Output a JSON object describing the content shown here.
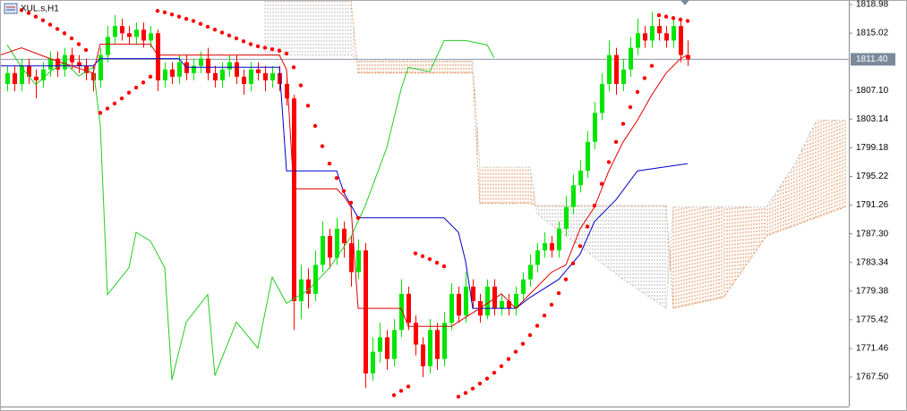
{
  "chart_data": {
    "type": "candlestick",
    "title": "XUL.s,H1",
    "xlim": [
      -1,
      117.5
    ],
    "ylim": [
      1763.43,
      1819.6
    ],
    "yticks": [
      1818.98,
      1815.02,
      {
        "value": 1807.1,
        "label": "1807.10"
      },
      1803.14,
      1799.18,
      1795.22,
      1791.26,
      {
        "value": 1787.3,
        "label": "1787.30"
      },
      1783.34,
      1779.38,
      1775.42,
      1771.46,
      {
        "value": 1767.5,
        "label": "1767.50"
      }
    ],
    "current_price": {
      "value": 1811.4,
      "label": "1811.40"
    },
    "up_color": "#00e600",
    "down_color": "#ff0000",
    "open": [
      1808.0,
      1809.5,
      1808.0,
      1810.5,
      1809.0,
      1808.5,
      1810.0,
      1811.5,
      1810.0,
      1812.0,
      1811.0,
      1810.5,
      1809.5,
      1808.5,
      1812.0,
      1814.5,
      1816.0,
      1815.0,
      1814.5,
      1815.5,
      1814.0,
      1815.0,
      1808.5,
      1810.0,
      1809.0,
      1811.0,
      1809.5,
      1810.5,
      1811.5,
      1809.5,
      1808.5,
      1810.0,
      1811.0,
      1809.0,
      1808.0,
      1810.0,
      1809.5,
      1808.5,
      1809.5,
      1808.0,
      1806.0,
      1778.0,
      1781.0,
      1779.0,
      1783.0,
      1787.0,
      1784.0,
      1788.0,
      1786.0,
      1782.0,
      1785.0,
      1768.0,
      1771.0,
      1773.0,
      1770.0,
      1774.0,
      1779.0,
      1775.0,
      1772.0,
      1769.0,
      1774.0,
      1770.0,
      1775.0,
      1779.0,
      1776.0,
      1780.0,
      1778.0,
      1776.0,
      1780.0,
      1777.0,
      1778.0,
      1777.0,
      1779.0,
      1781.0,
      1783.0,
      1785.0,
      1786.0,
      1785.0,
      1788.0,
      1791.0,
      1794.0,
      1796.0,
      1800.0,
      1804.0,
      1808.0,
      1812.0,
      1808.0,
      1810.0,
      1813.0,
      1815.0,
      1814.0,
      1816.0,
      1815.0,
      1814.0,
      1816.0,
      1812.0
    ],
    "high": [
      1810.5,
      1810.5,
      1811.5,
      1811.5,
      1810.0,
      1811.0,
      1812.5,
      1812.5,
      1813.0,
      1813.0,
      1812.0,
      1811.5,
      1810.5,
      1813.0,
      1816.0,
      1817.5,
      1817.0,
      1816.0,
      1816.5,
      1816.5,
      1816.0,
      1815.5,
      1811.0,
      1811.0,
      1812.0,
      1812.0,
      1811.5,
      1812.5,
      1813.0,
      1810.5,
      1811.0,
      1812.0,
      1812.0,
      1810.0,
      1811.0,
      1811.0,
      1810.5,
      1810.5,
      1810.5,
      1809.0,
      1806.5,
      1783.0,
      1782.5,
      1785.0,
      1789.0,
      1788.0,
      1789.5,
      1789.0,
      1787.0,
      1786.5,
      1786.0,
      1773.0,
      1775.0,
      1774.0,
      1775.5,
      1781.0,
      1780.0,
      1776.0,
      1773.0,
      1775.5,
      1775.0,
      1776.5,
      1780.5,
      1780.0,
      1782.0,
      1781.0,
      1779.0,
      1781.0,
      1781.0,
      1779.0,
      1779.0,
      1780.0,
      1782.0,
      1784.5,
      1786.0,
      1787.5,
      1787.0,
      1789.0,
      1792.5,
      1795.5,
      1797.5,
      1801.5,
      1805.5,
      1809.5,
      1814.0,
      1813.0,
      1811.5,
      1814.5,
      1817.0,
      1816.0,
      1818.0,
      1817.0,
      1816.0,
      1817.0,
      1817.0,
      1814.0
    ],
    "low": [
      1807.0,
      1807.0,
      1807.0,
      1808.0,
      1806.0,
      1807.5,
      1809.0,
      1809.0,
      1809.0,
      1810.0,
      1809.5,
      1808.5,
      1807.0,
      1807.5,
      1811.0,
      1813.5,
      1814.0,
      1813.5,
      1813.5,
      1813.0,
      1813.0,
      1807.0,
      1807.5,
      1808.0,
      1808.0,
      1808.5,
      1808.5,
      1809.5,
      1808.5,
      1807.5,
      1807.5,
      1809.0,
      1808.0,
      1806.5,
      1807.0,
      1808.5,
      1807.0,
      1807.5,
      1807.0,
      1805.0,
      1774.0,
      1775.5,
      1777.0,
      1778.0,
      1782.0,
      1782.5,
      1783.0,
      1784.0,
      1780.0,
      1781.0,
      1766.0,
      1767.0,
      1769.5,
      1768.5,
      1769.0,
      1773.0,
      1774.0,
      1770.5,
      1767.5,
      1768.0,
      1768.5,
      1769.0,
      1774.0,
      1775.0,
      1775.0,
      1777.0,
      1775.0,
      1775.5,
      1776.0,
      1776.0,
      1776.0,
      1776.0,
      1778.0,
      1780.0,
      1782.0,
      1784.0,
      1784.0,
      1784.0,
      1787.0,
      1790.0,
      1793.0,
      1795.0,
      1799.0,
      1803.0,
      1807.0,
      1806.5,
      1807.0,
      1809.0,
      1812.0,
      1813.0,
      1813.0,
      1814.0,
      1813.0,
      1813.0,
      1811.0,
      1810.5
    ],
    "close": [
      1809.5,
      1808.0,
      1810.5,
      1809.0,
      1808.5,
      1810.0,
      1811.5,
      1810.0,
      1812.0,
      1811.0,
      1810.5,
      1809.5,
      1808.5,
      1812.0,
      1814.5,
      1816.0,
      1815.0,
      1814.5,
      1815.5,
      1814.0,
      1815.0,
      1808.5,
      1810.0,
      1809.0,
      1811.0,
      1809.5,
      1810.5,
      1811.5,
      1809.5,
      1808.5,
      1810.0,
      1811.0,
      1809.0,
      1808.0,
      1810.0,
      1809.5,
      1808.5,
      1809.5,
      1808.0,
      1806.0,
      1778.0,
      1781.0,
      1779.0,
      1783.0,
      1787.0,
      1784.0,
      1788.0,
      1786.0,
      1782.0,
      1785.0,
      1768.0,
      1771.0,
      1773.0,
      1770.0,
      1774.0,
      1779.0,
      1775.0,
      1772.0,
      1769.0,
      1774.0,
      1770.0,
      1775.0,
      1779.0,
      1776.0,
      1780.0,
      1778.0,
      1776.0,
      1780.0,
      1777.0,
      1778.0,
      1777.0,
      1779.0,
      1781.0,
      1783.0,
      1785.0,
      1786.0,
      1785.0,
      1788.0,
      1791.0,
      1794.0,
      1796.0,
      1800.0,
      1804.0,
      1808.0,
      1812.0,
      1808.0,
      1810.0,
      1813.0,
      1815.0,
      1814.0,
      1816.0,
      1815.0,
      1814.0,
      1816.0,
      1812.0,
      1811.4
    ],
    "tenkan": {
      "color": "#e00000",
      "x": [
        -1,
        2,
        6,
        9,
        12,
        13,
        20,
        21,
        38,
        39,
        40,
        46,
        47,
        48,
        49,
        55,
        56,
        62,
        66,
        69,
        71,
        73,
        76,
        78,
        80,
        82,
        84,
        86,
        88,
        90,
        92,
        94,
        95
      ],
      "values": [
        1812.0,
        1813.0,
        1811.5,
        1810.5,
        1809.5,
        1813.5,
        1813.5,
        1812.0,
        1812.0,
        1810.0,
        1793.5,
        1793.5,
        1792.5,
        1791.0,
        1777.0,
        1777.0,
        1774.5,
        1774.5,
        1777.0,
        1779.0,
        1777.0,
        1779.0,
        1782.0,
        1783.0,
        1788.0,
        1791.0,
        1796.0,
        1800.0,
        1803.0,
        1806.5,
        1809.5,
        1811.5,
        1812.0
      ]
    },
    "kijun": {
      "color": "#0000c8",
      "x": [
        -1,
        12,
        13,
        24,
        25,
        38,
        39,
        46,
        47,
        49,
        61,
        63,
        64,
        65,
        71,
        73,
        77,
        80,
        82,
        85,
        88,
        95
      ],
      "values": [
        1810.5,
        1810.5,
        1811.5,
        1811.5,
        1810.3,
        1810.3,
        1796.0,
        1796.0,
        1793.0,
        1789.5,
        1789.5,
        1787.5,
        1783.5,
        1777.0,
        1777.0,
        1778.5,
        1781.0,
        1784.5,
        1789.0,
        1792.0,
        1796.0,
        1797.0
      ]
    },
    "chikou": {
      "color": "#22cc22",
      "x": [
        0,
        2,
        4,
        6,
        8,
        10,
        12,
        13,
        14,
        17,
        18,
        20,
        22,
        23,
        25,
        28,
        29,
        32,
        35,
        37,
        39,
        42,
        45,
        48,
        50,
        53,
        55,
        56,
        59,
        61,
        64,
        67,
        68
      ],
      "values": [
        1813.4,
        1810.3,
        1807.9,
        1809.7,
        1811.0,
        1809.1,
        1810.3,
        1802.3,
        1778.9,
        1782.6,
        1787.5,
        1786.3,
        1782.6,
        1767.1,
        1775.1,
        1778.9,
        1767.7,
        1775.1,
        1771.5,
        1781.3,
        1777.7,
        1779.5,
        1782.6,
        1786.9,
        1791.2,
        1799.2,
        1807.3,
        1810.3,
        1809.7,
        1814.0,
        1814.0,
        1813.4,
        1811.6
      ]
    },
    "span_a": {
      "color": "#e08a50",
      "x": [
        36,
        48,
        49,
        65,
        66,
        73,
        74,
        92,
        93,
        100,
        106,
        117
      ],
      "values": [
        1819.5,
        1819.5,
        1809.5,
        1809.5,
        1791.5,
        1791.5,
        1791.2,
        1791.2,
        1777.0,
        1778.5,
        1787.0,
        1791.0
      ]
    },
    "span_b": {
      "color": "#b8b8b8",
      "x": [
        36,
        48,
        49,
        65,
        66,
        73,
        74,
        80,
        86,
        92,
        93,
        106,
        110,
        113,
        117
      ],
      "values": [
        1812.0,
        1812.0,
        1811.2,
        1811.2,
        1796.5,
        1796.5,
        1790.0,
        1785.5,
        1781.0,
        1777.0,
        1791.0,
        1791.0,
        1797.0,
        1803.0,
        1803.0
      ]
    },
    "sar": {
      "color": "#ff0000",
      "x": [
        1,
        2,
        3,
        4,
        5,
        6,
        7,
        8,
        9,
        10,
        11,
        13,
        14,
        15,
        16,
        17,
        18,
        19,
        20,
        21,
        22,
        23,
        24,
        25,
        26,
        27,
        28,
        29,
        30,
        31,
        32,
        33,
        34,
        35,
        36,
        37,
        38,
        39,
        40,
        41,
        42,
        43,
        44,
        45,
        46,
        47,
        48,
        49,
        54,
        55,
        56,
        57,
        58,
        59,
        60,
        61,
        63,
        64,
        65,
        66,
        67,
        68,
        69,
        70,
        71,
        72,
        73,
        74,
        75,
        76,
        77,
        78,
        79,
        80,
        81,
        82,
        83,
        84,
        85,
        86,
        87,
        88,
        89,
        90,
        91,
        92,
        93,
        94,
        95
      ],
      "values": [
        1818.6,
        1818.2,
        1817.8,
        1817.3,
        1816.8,
        1816.2,
        1815.6,
        1815.0,
        1814.3,
        1813.5,
        1812.7,
        1804.0,
        1804.6,
        1805.3,
        1806.0,
        1806.8,
        1807.5,
        1808.2,
        1809.0,
        1818.1,
        1817.9,
        1817.6,
        1817.3,
        1817.0,
        1816.7,
        1816.3,
        1815.9,
        1815.5,
        1815.1,
        1814.7,
        1814.3,
        1813.9,
        1813.5,
        1813.2,
        1813.0,
        1812.8,
        1812.6,
        1812.2,
        1810.3,
        1807.8,
        1805.0,
        1802.2,
        1799.4,
        1797.0,
        1795.0,
        1793.2,
        1791.6,
        1789.5,
        1765.0,
        1765.6,
        1766.2,
        1784.6,
        1784.2,
        1783.8,
        1783.3,
        1782.8,
        1764.8,
        1765.3,
        1765.9,
        1766.6,
        1767.3,
        1768.1,
        1769.0,
        1770.0,
        1771.0,
        1772.1,
        1773.3,
        1774.6,
        1776.0,
        1777.5,
        1779.1,
        1781.0,
        1783.2,
        1785.6,
        1788.3,
        1791.2,
        1794.2,
        1797.2,
        1800.0,
        1802.5,
        1804.8,
        1806.9,
        1808.8,
        1810.5,
        1817.5,
        1817.3,
        1817.1,
        1816.9,
        1816.7
      ]
    }
  }
}
